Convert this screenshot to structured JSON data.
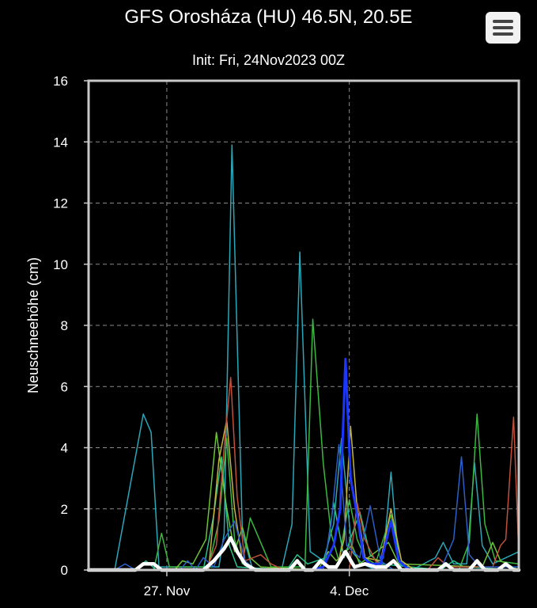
{
  "header": {
    "title": "GFS Orosháza (HU) 46.5N, 20.5E",
    "subtitle": "Init: Fri, 24Nov2023 00Z",
    "menu_icon": "hamburger-menu-icon"
  },
  "chart_data": {
    "type": "line",
    "title": "GFS Orosháza (HU) 46.5N, 20.5E",
    "subtitle": "Init: Fri, 24Nov2023 00Z",
    "xlabel": "",
    "ylabel": "Neuschneehöhe (cm)",
    "ylim": [
      0,
      16
    ],
    "yticks": [
      0,
      2,
      4,
      6,
      8,
      10,
      12,
      14,
      16
    ],
    "xlim": [
      0,
      16.5
    ],
    "xticks": [
      {
        "x": 3,
        "label": "27. Nov"
      },
      {
        "x": 10,
        "label": "4. Dec"
      }
    ],
    "grid": true,
    "legend": "none",
    "series": [
      {
        "color": "#2aa7b8",
        "width": 1.5,
        "points": [
          [
            0,
            0
          ],
          [
            1.0,
            0
          ],
          [
            2.1,
            5.1
          ],
          [
            2.4,
            4.5
          ],
          [
            2.7,
            0.1
          ],
          [
            5.0,
            0.1
          ],
          [
            5.2,
            1.2
          ],
          [
            5.5,
            13.9
          ],
          [
            5.9,
            1.2
          ],
          [
            6.3,
            0
          ],
          [
            7.4,
            0
          ],
          [
            7.8,
            1.5
          ],
          [
            8.1,
            10.4
          ],
          [
            8.5,
            0.6
          ],
          [
            9.0,
            0.3
          ],
          [
            9.4,
            1.5
          ],
          [
            9.7,
            4.3
          ],
          [
            10.1,
            0.6
          ],
          [
            10.5,
            0.2
          ],
          [
            11.0,
            0
          ],
          [
            11.3,
            0.4
          ],
          [
            11.6,
            3.2
          ],
          [
            11.9,
            0.2
          ],
          [
            12.4,
            0
          ],
          [
            13.3,
            0.4
          ],
          [
            13.6,
            0.9
          ],
          [
            14.0,
            0.2
          ],
          [
            14.5,
            0.2
          ],
          [
            14.8,
            3.5
          ],
          [
            15.1,
            0.8
          ],
          [
            15.5,
            0.2
          ],
          [
            16.5,
            0.6
          ]
        ]
      },
      {
        "color": "#3ab840",
        "width": 1.5,
        "points": [
          [
            0,
            0
          ],
          [
            2.5,
            0
          ],
          [
            2.8,
            1.2
          ],
          [
            3.1,
            0.1
          ],
          [
            4.6,
            0.1
          ],
          [
            5.0,
            1.6
          ],
          [
            5.3,
            4.3
          ],
          [
            5.6,
            1.0
          ],
          [
            5.9,
            0.2
          ],
          [
            6.2,
            1.7
          ],
          [
            6.6,
            0.9
          ],
          [
            7.0,
            0.1
          ],
          [
            8.3,
            0.1
          ],
          [
            8.6,
            8.2
          ],
          [
            9.0,
            3.5
          ],
          [
            9.3,
            1.2
          ],
          [
            9.6,
            0.3
          ],
          [
            10.0,
            2.3
          ],
          [
            10.3,
            1.0
          ],
          [
            10.6,
            0.4
          ],
          [
            11.0,
            0.2
          ],
          [
            11.6,
            1.8
          ],
          [
            12.0,
            0.3
          ],
          [
            12.5,
            0
          ],
          [
            14.2,
            0
          ],
          [
            14.6,
            0.9
          ],
          [
            14.9,
            5.1
          ],
          [
            15.2,
            1.5
          ],
          [
            15.6,
            0.3
          ],
          [
            16.5,
            0.2
          ]
        ]
      },
      {
        "color": "#2ac28a",
        "width": 1.5,
        "points": [
          [
            0,
            0
          ],
          [
            1.8,
            0
          ],
          [
            2.2,
            0.3
          ],
          [
            2.6,
            0
          ],
          [
            4.4,
            0
          ],
          [
            4.8,
            1.8
          ],
          [
            5.1,
            3.7
          ],
          [
            5.4,
            0.8
          ],
          [
            5.7,
            0.1
          ],
          [
            7.6,
            0
          ],
          [
            8.0,
            0.5
          ],
          [
            8.4,
            0.2
          ],
          [
            9.1,
            0.4
          ],
          [
            9.4,
            2.2
          ],
          [
            9.8,
            0.4
          ],
          [
            10.4,
            1.9
          ],
          [
            10.8,
            0.5
          ],
          [
            11.2,
            0.2
          ],
          [
            13.5,
            0
          ],
          [
            14.0,
            0.3
          ],
          [
            14.4,
            0.1
          ],
          [
            16.5,
            0
          ]
        ]
      },
      {
        "color": "#6ec23a",
        "width": 1.5,
        "points": [
          [
            0,
            0
          ],
          [
            3.3,
            0
          ],
          [
            3.6,
            0.3
          ],
          [
            4.0,
            0.2
          ],
          [
            4.5,
            1.0
          ],
          [
            4.9,
            4.5
          ],
          [
            5.3,
            2.0
          ],
          [
            5.6,
            0.6
          ],
          [
            5.9,
            1.4
          ],
          [
            6.2,
            0.4
          ],
          [
            6.6,
            0.1
          ],
          [
            8.8,
            0
          ],
          [
            9.2,
            0.6
          ],
          [
            9.5,
            0.3
          ],
          [
            10.1,
            0.8
          ],
          [
            10.4,
            0.2
          ],
          [
            11.5,
            0.9
          ],
          [
            11.9,
            0.2
          ],
          [
            15.1,
            0.1
          ],
          [
            15.5,
            0.9
          ],
          [
            15.8,
            0.3
          ],
          [
            16.5,
            0
          ]
        ]
      },
      {
        "color": "#c4b440",
        "width": 1.5,
        "points": [
          [
            0,
            0
          ],
          [
            4.6,
            0
          ],
          [
            5.0,
            3.6
          ],
          [
            5.3,
            4.9
          ],
          [
            5.6,
            2.0
          ],
          [
            5.9,
            0.3
          ],
          [
            6.3,
            0
          ],
          [
            9.5,
            0
          ],
          [
            9.8,
            1.0
          ],
          [
            10.05,
            4.7
          ],
          [
            10.3,
            2.0
          ],
          [
            10.6,
            0.4
          ],
          [
            11.2,
            0.3
          ],
          [
            11.6,
            2.0
          ],
          [
            12.0,
            0.3
          ],
          [
            12.5,
            0
          ],
          [
            16.5,
            0
          ]
        ]
      },
      {
        "color": "#c0503a",
        "width": 1.5,
        "points": [
          [
            0,
            0
          ],
          [
            4.5,
            0
          ],
          [
            4.9,
            0.8
          ],
          [
            5.2,
            4.0
          ],
          [
            5.45,
            6.3
          ],
          [
            5.7,
            2.4
          ],
          [
            6.0,
            0.3
          ],
          [
            6.6,
            0.5
          ],
          [
            7.0,
            0.2
          ],
          [
            7.5,
            0
          ],
          [
            10.0,
            0
          ],
          [
            10.3,
            2.2
          ],
          [
            10.6,
            1.0
          ],
          [
            11.0,
            0.3
          ],
          [
            11.5,
            0
          ],
          [
            13.0,
            0
          ],
          [
            13.4,
            0.4
          ],
          [
            13.8,
            0.1
          ],
          [
            15.5,
            0.1
          ],
          [
            15.8,
            0.8
          ],
          [
            16.0,
            1.0
          ],
          [
            16.3,
            5.0
          ],
          [
            16.5,
            0.5
          ]
        ]
      },
      {
        "color": "#2b5ec8",
        "width": 1.5,
        "points": [
          [
            0,
            0
          ],
          [
            1.0,
            0
          ],
          [
            1.4,
            0.2
          ],
          [
            1.8,
            0
          ],
          [
            3.5,
            0
          ],
          [
            3.8,
            0.3
          ],
          [
            4.1,
            0
          ],
          [
            4.4,
            0.4
          ],
          [
            4.8,
            0.1
          ],
          [
            5.2,
            1.0
          ],
          [
            5.6,
            1.6
          ],
          [
            6.0,
            0.3
          ],
          [
            6.4,
            0
          ],
          [
            9.0,
            0
          ],
          [
            9.3,
            1.5
          ],
          [
            9.6,
            4.1
          ],
          [
            9.9,
            0.8
          ],
          [
            10.4,
            0.4
          ],
          [
            10.8,
            2.1
          ],
          [
            11.2,
            0.3
          ],
          [
            11.7,
            0
          ],
          [
            13.5,
            0
          ],
          [
            14.0,
            1.0
          ],
          [
            14.3,
            3.7
          ],
          [
            14.6,
            0.5
          ],
          [
            15.0,
            0.1
          ],
          [
            16.5,
            0.1
          ]
        ]
      },
      {
        "color": "#1a36ff",
        "width": 3,
        "points": [
          [
            0,
            0
          ],
          [
            8.6,
            0
          ],
          [
            9.0,
            0.1
          ],
          [
            9.4,
            0.8
          ],
          [
            9.65,
            2.0
          ],
          [
            9.85,
            6.9
          ],
          [
            10.05,
            3.0
          ],
          [
            10.3,
            1.8
          ],
          [
            10.55,
            0.4
          ],
          [
            10.8,
            0.2
          ],
          [
            11.2,
            0.2
          ],
          [
            11.6,
            1.6
          ],
          [
            11.9,
            0.3
          ],
          [
            12.3,
            0
          ],
          [
            16.5,
            0
          ]
        ]
      },
      {
        "color": "#ffffff",
        "width": 4.5,
        "points": [
          [
            0,
            0
          ],
          [
            1.8,
            0
          ],
          [
            2.1,
            0.2
          ],
          [
            2.5,
            0.2
          ],
          [
            2.8,
            0
          ],
          [
            4.4,
            0
          ],
          [
            4.8,
            0.3
          ],
          [
            5.2,
            0.7
          ],
          [
            5.45,
            1.05
          ],
          [
            5.7,
            0.6
          ],
          [
            6.0,
            0.2
          ],
          [
            6.4,
            0
          ],
          [
            7.7,
            0
          ],
          [
            8.0,
            0.3
          ],
          [
            8.3,
            0
          ],
          [
            8.6,
            0
          ],
          [
            8.9,
            0.3
          ],
          [
            9.2,
            0.1
          ],
          [
            9.5,
            0.1
          ],
          [
            9.85,
            0.6
          ],
          [
            10.2,
            0.1
          ],
          [
            10.6,
            0.2
          ],
          [
            11.0,
            0.1
          ],
          [
            11.4,
            0.1
          ],
          [
            11.7,
            0.3
          ],
          [
            12.0,
            0
          ],
          [
            13.4,
            0
          ],
          [
            13.7,
            0.2
          ],
          [
            14.0,
            0
          ],
          [
            14.6,
            0
          ],
          [
            14.9,
            0.3
          ],
          [
            15.2,
            0
          ],
          [
            15.7,
            0
          ],
          [
            16.0,
            0.2
          ],
          [
            16.3,
            0
          ],
          [
            16.5,
            0
          ]
        ]
      }
    ]
  }
}
